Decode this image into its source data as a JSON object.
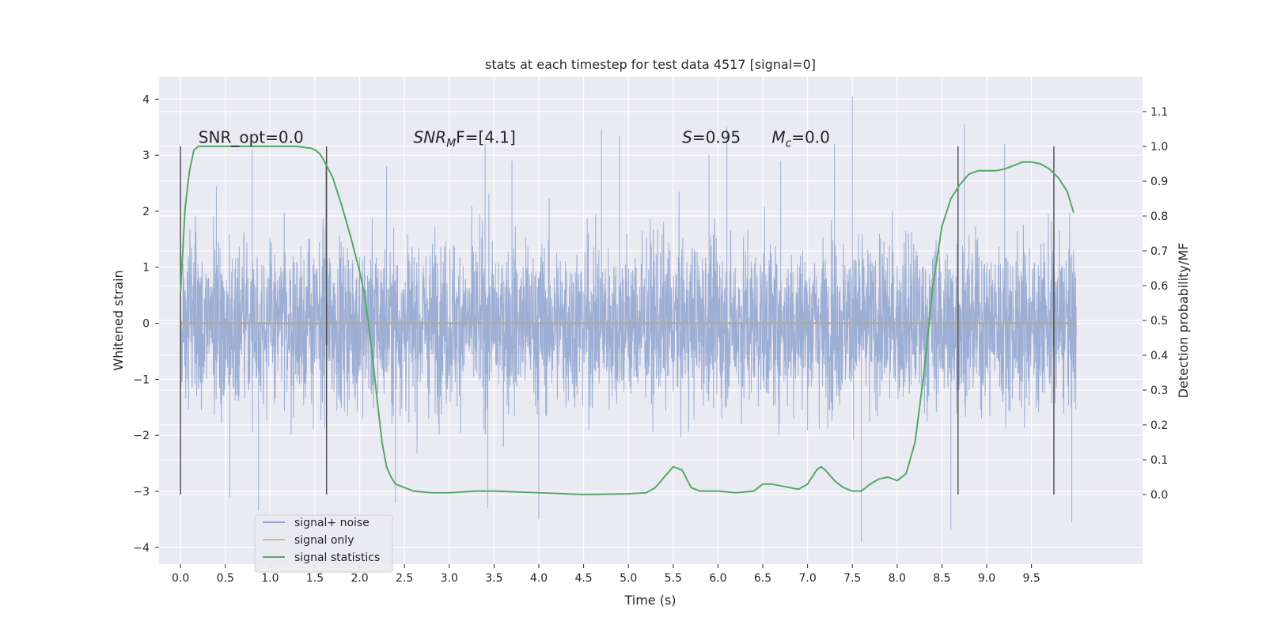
{
  "chart_data": {
    "type": "line",
    "title": "stats at each timestep for test data 4517 [signal=0]",
    "xlabel": "Time (s)",
    "ylabel_left": "Whitened strain",
    "ylabel_right": "Detection probability/MF",
    "xlim": [
      -0.24,
      10.74
    ],
    "ylim_left": [
      -4.3,
      4.4
    ],
    "ylim_right": [
      -0.2,
      1.2
    ],
    "x_ticks": [
      0.0,
      0.5,
      1.0,
      1.5,
      2.0,
      2.5,
      3.0,
      3.5,
      4.0,
      4.5,
      5.0,
      5.5,
      6.0,
      6.5,
      7.0,
      7.5,
      8.0,
      8.5,
      9.0,
      9.5
    ],
    "x_tick_labels": [
      "0.0",
      "0.5",
      "1.0",
      "1.5",
      "2.0",
      "2.5",
      "3.0",
      "3.5",
      "4.0",
      "4.5",
      "5.0",
      "5.5",
      "6.0",
      "6.5",
      "7.0",
      "7.5",
      "8.0",
      "8.5",
      "9.0",
      "9.5"
    ],
    "y_left_ticks": [
      -4,
      -3,
      -2,
      -1,
      0,
      1,
      2,
      3,
      4
    ],
    "y_left_tick_labels": [
      "−4",
      "−3",
      "−2",
      "−1",
      "0",
      "1",
      "2",
      "3",
      "4"
    ],
    "y_right_ticks": [
      0.0,
      0.1,
      0.2,
      0.3,
      0.4,
      0.5,
      0.6,
      0.7,
      0.8,
      0.9,
      1.0,
      1.1
    ],
    "y_right_tick_labels": [
      "0.0",
      "0.1",
      "0.2",
      "0.3",
      "0.4",
      "0.5",
      "0.6",
      "0.7",
      "0.8",
      "0.9",
      "1.0",
      "1.1"
    ],
    "grid": true,
    "legend_position": "lower-left",
    "series": [
      {
        "name": "signal+ noise",
        "axis": "left",
        "color": "#8fa3cf",
        "envelope": {
          "x": [
            0.0,
            10.0
          ],
          "typical_range": [
            -1.9,
            1.9
          ],
          "extremes": [
            {
              "x": 0.4,
              "y": 2.45
            },
            {
              "x": 0.55,
              "y": -3.1
            },
            {
              "x": 0.8,
              "y": 3.1
            },
            {
              "x": 0.87,
              "y": -3.35
            },
            {
              "x": 1.62,
              "y": 2.9
            },
            {
              "x": 2.3,
              "y": 2.8
            },
            {
              "x": 2.4,
              "y": -3.2
            },
            {
              "x": 3.4,
              "y": 3.2
            },
            {
              "x": 3.43,
              "y": -3.3
            },
            {
              "x": 3.7,
              "y": 2.9
            },
            {
              "x": 4.0,
              "y": -3.5
            },
            {
              "x": 4.7,
              "y": 3.45
            },
            {
              "x": 4.9,
              "y": 3.35
            },
            {
              "x": 5.9,
              "y": 3.0
            },
            {
              "x": 6.1,
              "y": 3.5
            },
            {
              "x": 6.7,
              "y": 2.9
            },
            {
              "x": 7.3,
              "y": 3.2
            },
            {
              "x": 7.5,
              "y": 4.05
            },
            {
              "x": 7.6,
              "y": -3.9
            },
            {
              "x": 8.6,
              "y": -3.7
            },
            {
              "x": 8.75,
              "y": 3.55
            },
            {
              "x": 9.2,
              "y": 3.2
            },
            {
              "x": 9.95,
              "y": -3.55
            }
          ]
        }
      },
      {
        "name": "signal only",
        "axis": "left",
        "color": "#dd8452",
        "x": [
          0.0,
          10.0
        ],
        "y": [
          0.0,
          0.0
        ]
      },
      {
        "name": "signal statistics",
        "axis": "right",
        "color": "#55a868",
        "x": [
          0.0,
          0.05,
          0.1,
          0.15,
          0.2,
          0.3,
          0.5,
          1.0,
          1.3,
          1.45,
          1.5,
          1.55,
          1.6,
          1.7,
          1.8,
          1.9,
          2.0,
          2.05,
          2.1,
          2.15,
          2.2,
          2.25,
          2.3,
          2.35,
          2.4,
          2.5,
          2.6,
          2.8,
          3.0,
          3.3,
          3.5,
          4.0,
          4.5,
          5.0,
          5.2,
          5.3,
          5.4,
          5.5,
          5.6,
          5.7,
          5.8,
          6.0,
          6.2,
          6.4,
          6.5,
          6.6,
          6.8,
          6.9,
          7.0,
          7.1,
          7.15,
          7.2,
          7.3,
          7.4,
          7.5,
          7.6,
          7.7,
          7.8,
          7.9,
          8.0,
          8.1,
          8.2,
          8.3,
          8.4,
          8.5,
          8.6,
          8.7,
          8.8,
          8.9,
          9.0,
          9.1,
          9.2,
          9.3,
          9.4,
          9.5,
          9.6,
          9.7,
          9.8,
          9.9,
          9.97
        ],
        "y": [
          0.58,
          0.82,
          0.93,
          0.99,
          1.0,
          1.0,
          1.0,
          1.0,
          1.0,
          0.995,
          0.99,
          0.98,
          0.96,
          0.91,
          0.83,
          0.74,
          0.64,
          0.58,
          0.49,
          0.38,
          0.26,
          0.15,
          0.08,
          0.05,
          0.03,
          0.02,
          0.01,
          0.005,
          0.005,
          0.01,
          0.01,
          0.005,
          0.0,
          0.002,
          0.005,
          0.02,
          0.05,
          0.08,
          0.07,
          0.02,
          0.01,
          0.01,
          0.005,
          0.01,
          0.03,
          0.03,
          0.02,
          0.015,
          0.03,
          0.07,
          0.08,
          0.07,
          0.04,
          0.02,
          0.01,
          0.01,
          0.03,
          0.045,
          0.05,
          0.04,
          0.06,
          0.15,
          0.35,
          0.6,
          0.77,
          0.85,
          0.89,
          0.92,
          0.93,
          0.93,
          0.93,
          0.935,
          0.945,
          0.955,
          0.955,
          0.95,
          0.935,
          0.91,
          0.87,
          0.81
        ]
      }
    ],
    "vertical_markers": {
      "color": "#4c4c4c",
      "x": [
        0.0,
        1.63,
        8.68,
        9.75
      ],
      "y_range_right": [
        0.0,
        1.0
      ]
    },
    "annotations": [
      {
        "id": "snr-opt",
        "text": "SNR_opt=0.0",
        "x": 0.2,
        "y_right": 1.01
      },
      {
        "id": "snr-mf",
        "text_base": "SNR",
        "text_sub": "M",
        "text_tail": "F=[4.1]",
        "x": 2.6,
        "y_right": 1.01
      },
      {
        "id": "s",
        "text_base": "S",
        "text_tail": "=0.95",
        "x": 5.6,
        "y_right": 1.01
      },
      {
        "id": "mc",
        "text_base": "M",
        "text_sub": "c",
        "text_tail": "=0.0",
        "x": 6.6,
        "y_right": 1.01
      }
    ],
    "style": {
      "plot_bg": "#eaeaf2",
      "grid_color": "#ffffff",
      "legend_bg": "#eaeaf2",
      "legend_edge": "#d0d0d0"
    }
  }
}
